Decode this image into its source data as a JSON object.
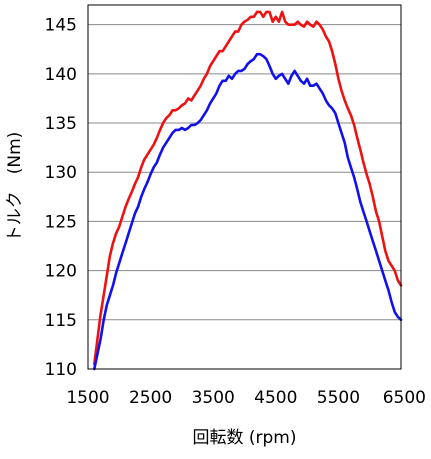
{
  "chart_data": {
    "type": "line",
    "title": "",
    "xlabel": "回転数 (rpm)",
    "ylabel": "トルク　(Nm)",
    "xlim": [
      1500,
      6500
    ],
    "ylim": [
      110,
      147
    ],
    "xticks": [
      1500,
      2500,
      3500,
      4500,
      5500,
      6500
    ],
    "yticks": [
      110,
      115,
      120,
      125,
      130,
      135,
      140,
      145
    ],
    "grid": "horizontal",
    "legend": "none",
    "series": [
      {
        "color": "#ee1111",
        "x": [
          1600,
          1650,
          1700,
          1750,
          1800,
          1850,
          1900,
          1950,
          2000,
          2050,
          2100,
          2150,
          2200,
          2250,
          2300,
          2350,
          2400,
          2450,
          2500,
          2550,
          2600,
          2650,
          2700,
          2750,
          2800,
          2850,
          2900,
          2950,
          3000,
          3050,
          3100,
          3150,
          3200,
          3250,
          3300,
          3350,
          3400,
          3450,
          3500,
          3550,
          3600,
          3650,
          3700,
          3750,
          3800,
          3850,
          3900,
          3950,
          4000,
          4050,
          4100,
          4150,
          4200,
          4250,
          4300,
          4350,
          4400,
          4450,
          4500,
          4550,
          4600,
          4650,
          4700,
          4750,
          4800,
          4850,
          4900,
          4950,
          5000,
          5050,
          5100,
          5150,
          5200,
          5250,
          5300,
          5350,
          5400,
          5450,
          5500,
          5550,
          5600,
          5650,
          5700,
          5750,
          5800,
          5850,
          5900,
          5950,
          6000,
          6050,
          6100,
          6150,
          6200,
          6250,
          6300,
          6350,
          6400,
          6450,
          6500
        ],
        "values": [
          110.5,
          113,
          115.5,
          117.5,
          119.5,
          121.5,
          122.8,
          123.8,
          124.5,
          125.5,
          126.5,
          127.3,
          128,
          128.8,
          129.5,
          130.5,
          131.3,
          131.8,
          132.3,
          132.8,
          133.5,
          134.3,
          135,
          135.5,
          135.8,
          136.3,
          136.3,
          136.5,
          136.8,
          137,
          137.5,
          137.3,
          137.8,
          138.3,
          138.8,
          139.5,
          140,
          140.8,
          141.3,
          141.8,
          142.3,
          142.3,
          142.8,
          143.3,
          143.8,
          144.3,
          144.3,
          145,
          145.3,
          145.5,
          145.8,
          145.8,
          146.3,
          146.3,
          145.8,
          146.3,
          146.3,
          145.3,
          145.8,
          145.3,
          146.3,
          145.3,
          145,
          145,
          145,
          145.3,
          145,
          144.8,
          145.3,
          145,
          144.8,
          145.3,
          145,
          144.5,
          143.8,
          143.3,
          142.3,
          141,
          139.5,
          138.3,
          137.3,
          136.5,
          135.8,
          134.8,
          133.5,
          132.3,
          131,
          129.8,
          128.8,
          127.5,
          126,
          125,
          123.5,
          122,
          121,
          120.5,
          120,
          119,
          118.5
        ]
      },
      {
        "color": "#1111ee",
        "x": [
          1600,
          1650,
          1700,
          1750,
          1800,
          1850,
          1900,
          1950,
          2000,
          2050,
          2100,
          2150,
          2200,
          2250,
          2300,
          2350,
          2400,
          2450,
          2500,
          2550,
          2600,
          2650,
          2700,
          2750,
          2800,
          2850,
          2900,
          2950,
          3000,
          3050,
          3100,
          3150,
          3200,
          3250,
          3300,
          3350,
          3400,
          3450,
          3500,
          3550,
          3600,
          3650,
          3700,
          3750,
          3800,
          3850,
          3900,
          3950,
          4000,
          4050,
          4100,
          4150,
          4200,
          4250,
          4300,
          4350,
          4400,
          4450,
          4500,
          4550,
          4600,
          4650,
          4700,
          4750,
          4800,
          4850,
          4900,
          4950,
          5000,
          5050,
          5100,
          5150,
          5200,
          5250,
          5300,
          5350,
          5400,
          5450,
          5500,
          5550,
          5600,
          5650,
          5700,
          5750,
          5800,
          5850,
          5900,
          5950,
          6000,
          6050,
          6100,
          6150,
          6200,
          6250,
          6300,
          6350,
          6400,
          6450,
          6500
        ],
        "values": [
          110,
          111.5,
          113,
          115,
          116.5,
          117.5,
          118.5,
          119.8,
          120.8,
          121.8,
          122.8,
          123.8,
          124.8,
          125.8,
          126.5,
          127.5,
          128.3,
          129,
          129.8,
          130.5,
          131,
          131.8,
          132.5,
          133,
          133.5,
          134,
          134.3,
          134.3,
          134.5,
          134.3,
          134.5,
          134.8,
          134.8,
          135,
          135.3,
          135.8,
          136.3,
          137,
          137.5,
          138,
          138.8,
          139.3,
          139.3,
          139.8,
          139.5,
          140,
          140.3,
          140.3,
          140.5,
          141,
          141.3,
          141.5,
          142,
          142,
          141.8,
          141.5,
          140.8,
          140,
          139.5,
          139.8,
          140,
          139.5,
          139,
          139.8,
          140.3,
          139.8,
          139.3,
          139,
          139.5,
          138.8,
          138.8,
          139,
          138.5,
          138,
          137.3,
          136.8,
          136.5,
          136,
          135,
          134,
          133,
          131.5,
          130.5,
          129.5,
          128.3,
          127,
          126,
          125,
          124,
          123,
          122,
          121,
          120,
          119,
          118,
          116.8,
          115.8,
          115.3,
          115
        ]
      }
    ]
  }
}
